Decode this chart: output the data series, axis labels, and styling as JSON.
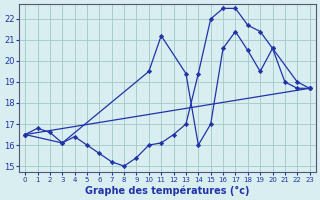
{
  "background_color": "#d8eef0",
  "grid_color": "#aacccc",
  "line_color": "#2233aa",
  "marker_color": "#2233aa",
  "xlabel": "Graphe des températures (°c)",
  "xlim": [
    -0.5,
    23.5
  ],
  "ylim": [
    14.7,
    22.7
  ],
  "yticks": [
    15,
    16,
    17,
    18,
    19,
    20,
    21,
    22
  ],
  "xticks": [
    0,
    1,
    2,
    3,
    4,
    5,
    6,
    7,
    8,
    9,
    10,
    11,
    12,
    13,
    14,
    15,
    16,
    17,
    18,
    19,
    20,
    21,
    22,
    23
  ],
  "series": [
    {
      "x": [
        0,
        1,
        2,
        3,
        4,
        5,
        6,
        7,
        8,
        9,
        10,
        11,
        12,
        13,
        14,
        15,
        16,
        17,
        18,
        19,
        20,
        21,
        22,
        23
      ],
      "y": [
        16.5,
        16.8,
        16.6,
        16.1,
        16.4,
        16.0,
        15.6,
        15.2,
        15.0,
        15.4,
        16.0,
        16.1,
        16.5,
        17.0,
        19.4,
        22.0,
        22.5,
        22.5,
        21.7,
        21.4,
        20.6,
        19.0,
        18.7,
        18.7
      ]
    },
    {
      "x": [
        0,
        3,
        10,
        11,
        13,
        14,
        15,
        16,
        17,
        18,
        19,
        20,
        22,
        23
      ],
      "y": [
        16.5,
        16.1,
        19.5,
        21.2,
        19.4,
        16.0,
        17.0,
        20.6,
        21.4,
        20.5,
        19.5,
        20.6,
        19.0,
        18.7
      ]
    },
    {
      "x": [
        0,
        23
      ],
      "y": [
        16.5,
        18.7
      ]
    }
  ]
}
